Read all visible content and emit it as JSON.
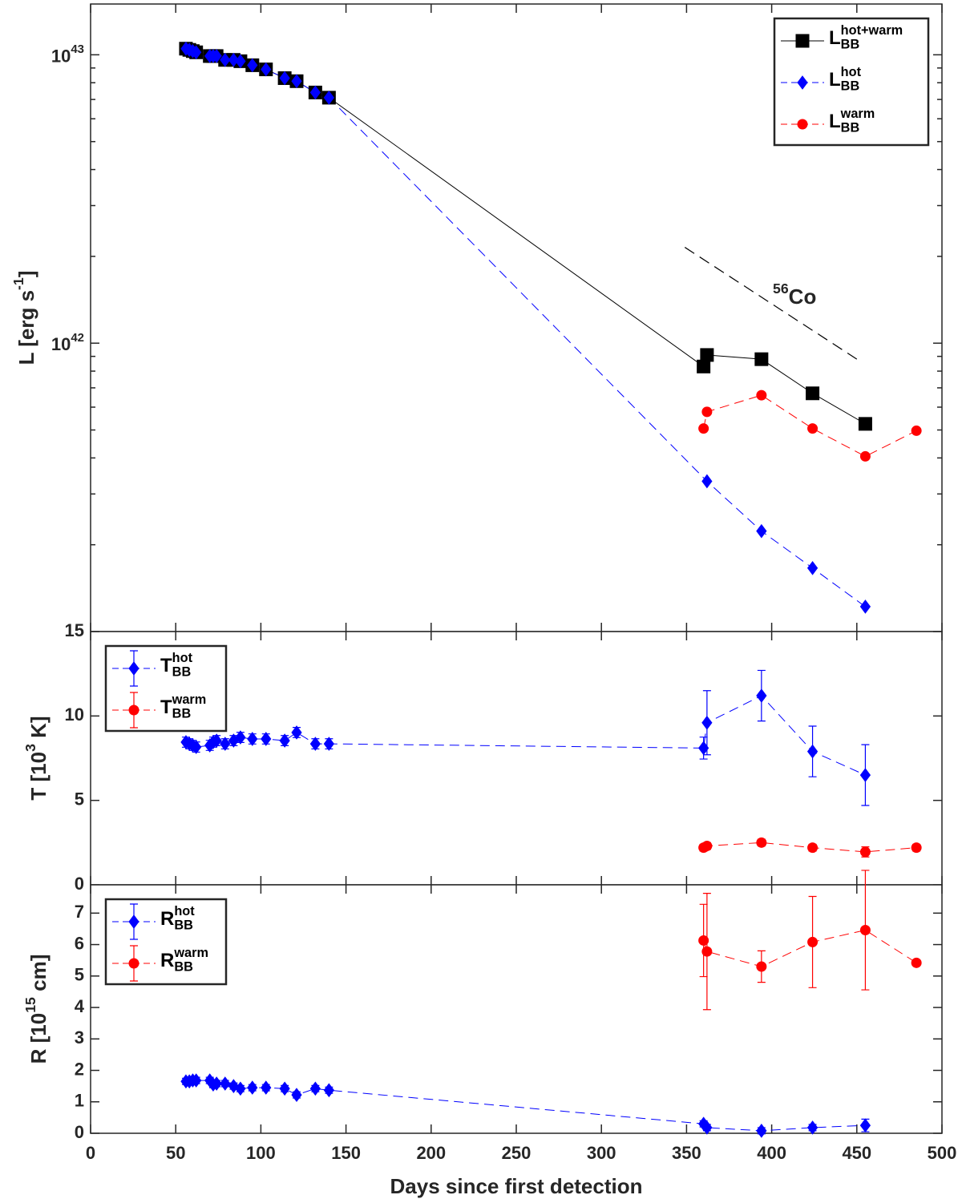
{
  "chart_data": [
    {
      "type": "line",
      "ylog": true,
      "ylabel": "L [erg s^{-1}]",
      "xlim": [
        0,
        500
      ],
      "ylim": [
        1e+41,
        1.5e+43
      ],
      "yticks": [
        {
          "value": 1e+42,
          "label": "10^{42}"
        },
        {
          "value": 1e+43,
          "label": "10^{43}"
        }
      ],
      "yminorticks": [
        2e+41,
        3e+41,
        4e+41,
        5e+41,
        6e+41,
        7e+41,
        8e+41,
        9e+41,
        2e+42,
        3e+42,
        4e+42,
        5e+42,
        6e+42,
        7e+42,
        8e+42,
        9e+42
      ],
      "legend": "upper right",
      "annotation": "^{56}Co",
      "guide_line": {
        "x": [
          349,
          450
        ],
        "values": [
          2.15e+42,
          8.8e+41
        ]
      },
      "series": [
        {
          "name": "L^{hot+warm}_{BB}",
          "color": "#000000",
          "marker": "square",
          "linestyle": "solid",
          "x": [
            56,
            58,
            60,
            62,
            70,
            72,
            74,
            79,
            84,
            88,
            95,
            103,
            114,
            121,
            132,
            140,
            360,
            362,
            394,
            424,
            455
          ],
          "values": [
            1.05e+43,
            1.04e+43,
            1.03e+43,
            1.02e+43,
            9.9e+42,
            9.9e+42,
            9.9e+42,
            9.6e+42,
            9.6e+42,
            9.5e+42,
            9.2e+42,
            8.9e+42,
            8.3e+42,
            8.1e+42,
            7.4e+42,
            7.1e+42,
            8.3e+41,
            9.1e+41,
            8.8e+41,
            6.7e+41,
            5.25e+41
          ]
        },
        {
          "name": "L^{hot}_{BB}",
          "color": "#0000ff",
          "marker": "diamond",
          "linestyle": "dashed",
          "x": [
            56,
            58,
            60,
            62,
            70,
            72,
            74,
            79,
            84,
            88,
            95,
            103,
            114,
            121,
            132,
            140,
            362,
            394,
            424,
            455
          ],
          "values": [
            1.05e+43,
            1.04e+43,
            1.03e+43,
            1.02e+43,
            9.9e+42,
            9.9e+42,
            9.9e+42,
            9.6e+42,
            9.6e+42,
            9.5e+42,
            9.2e+42,
            8.9e+42,
            8.3e+42,
            8.1e+42,
            7.4e+42,
            7.1e+42,
            3.32e+41,
            2.23e+41,
            1.66e+41,
            1.22e+41
          ]
        },
        {
          "name": "L^{warm}_{BB}",
          "color": "#ff0000",
          "marker": "circle",
          "linestyle": "dashed",
          "x": [
            360,
            362,
            394,
            424,
            455,
            485
          ],
          "values": [
            5.06e+41,
            5.78e+41,
            6.6e+41,
            5.06e+41,
            4.05e+41,
            4.97e+41
          ]
        }
      ]
    },
    {
      "type": "line",
      "ylabel": "T [10^{3} K]",
      "xlim": [
        0,
        500
      ],
      "ylim": [
        0,
        15
      ],
      "yticks": [
        0,
        5,
        10,
        15
      ],
      "legend": "upper left",
      "series": [
        {
          "name": "T^{hot}_{BB}",
          "color": "#0000ff",
          "marker": "diamond",
          "linestyle": "dashed",
          "x": [
            56,
            58,
            60,
            62,
            70,
            72,
            74,
            79,
            84,
            88,
            95,
            103,
            114,
            121,
            132,
            140,
            360,
            362,
            394,
            424,
            455
          ],
          "values": [
            8.45,
            8.35,
            8.26,
            8.16,
            8.26,
            8.45,
            8.54,
            8.35,
            8.54,
            8.73,
            8.64,
            8.64,
            8.54,
            9.02,
            8.35,
            8.35,
            8.1,
            9.6,
            11.2,
            7.9,
            6.5
          ],
          "errors": [
            0.3,
            0.3,
            0.3,
            0.3,
            0.3,
            0.3,
            0.3,
            0.3,
            0.3,
            0.3,
            0.3,
            0.3,
            0.3,
            0.3,
            0.3,
            0.3,
            0.65,
            1.9,
            1.5,
            1.5,
            1.8
          ]
        },
        {
          "name": "T^{warm}_{BB}",
          "color": "#ff0000",
          "marker": "circle",
          "linestyle": "dashed",
          "x": [
            360,
            362,
            394,
            424,
            455,
            485
          ],
          "values": [
            2.2,
            2.3,
            2.5,
            2.2,
            1.95,
            2.2
          ],
          "errors": [
            0.2,
            0.2,
            0.2,
            0.2,
            0.3,
            0.2
          ]
        }
      ]
    },
    {
      "type": "line",
      "xlabel": "Days since first detection",
      "ylabel": "R [10^{15} cm]",
      "xlim": [
        0,
        500
      ],
      "ylim": [
        0,
        7.9
      ],
      "xticks": [
        0,
        50,
        100,
        150,
        200,
        250,
        300,
        350,
        400,
        450,
        500
      ],
      "yticks": [
        0,
        1,
        2,
        3,
        4,
        5,
        6,
        7
      ],
      "legend": "upper left",
      "series": [
        {
          "name": "R^{hot}_{BB}",
          "color": "#0000ff",
          "marker": "diamond",
          "linestyle": "dashed",
          "x": [
            56,
            58,
            60,
            62,
            70,
            72,
            74,
            79,
            84,
            88,
            95,
            103,
            114,
            121,
            132,
            140,
            360,
            362,
            394,
            424,
            455
          ],
          "values": [
            1.65,
            1.65,
            1.68,
            1.68,
            1.68,
            1.55,
            1.58,
            1.58,
            1.5,
            1.42,
            1.45,
            1.45,
            1.42,
            1.22,
            1.42,
            1.37,
            0.3,
            0.18,
            0.08,
            0.18,
            0.25
          ],
          "errors": [
            0.1,
            0.1,
            0.1,
            0.1,
            0.1,
            0.1,
            0.1,
            0.1,
            0.1,
            0.1,
            0.1,
            0.1,
            0.1,
            0.1,
            0.1,
            0.1,
            0.1,
            0.1,
            0.1,
            0.1,
            0.2
          ]
        },
        {
          "name": "R^{warm}_{BB}",
          "color": "#ff0000",
          "marker": "circle",
          "linestyle": "dashed",
          "x": [
            360,
            362,
            394,
            424,
            455,
            485
          ],
          "values": [
            6.13,
            5.78,
            5.3,
            6.08,
            6.46,
            5.42
          ],
          "errors": [
            1.15,
            1.85,
            0.5,
            1.45,
            1.9,
            0
          ]
        }
      ]
    }
  ]
}
